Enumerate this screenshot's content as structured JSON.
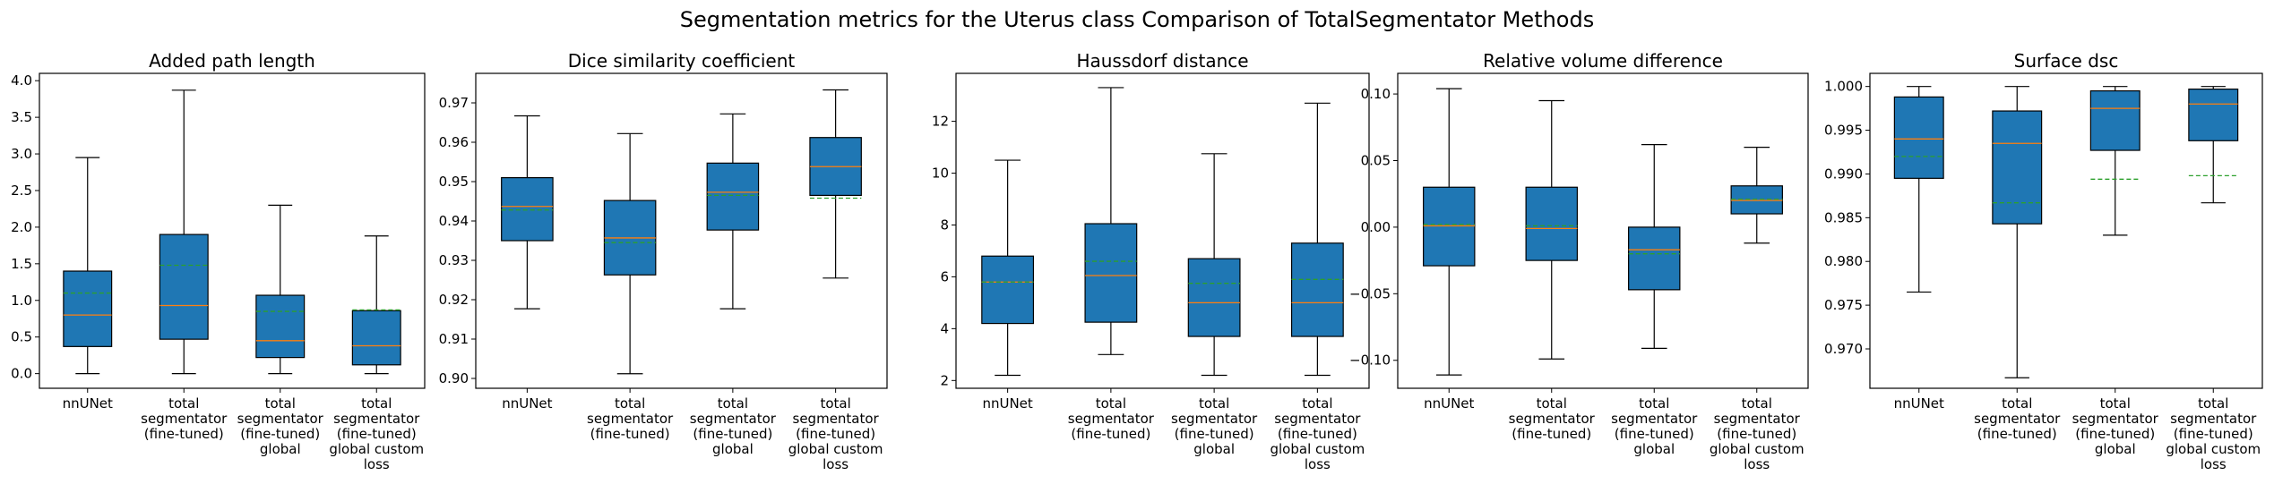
{
  "suptitle": "Segmentation metrics for the Uterus class Comparison of TotalSegmentator Methods",
  "colors": {
    "box_fill": "#1f77b4",
    "median": "#ff7f0e",
    "mean": "#2ca02c",
    "line": "#000000"
  },
  "categories": [
    [
      "nnUNet"
    ],
    [
      "total",
      "segmentator",
      "(fine-tuned)"
    ],
    [
      "total",
      "segmentator",
      "(fine-tuned)",
      "global"
    ],
    [
      "total",
      "segmentator",
      "(fine-tuned)",
      "global custom",
      "loss"
    ]
  ],
  "chart_data": [
    {
      "type": "box",
      "title": "Added path length",
      "ylim": [
        -0.2,
        4.1
      ],
      "yticks": [
        0.0,
        0.5,
        1.0,
        1.5,
        2.0,
        2.5,
        3.0,
        3.5,
        4.0
      ],
      "tick_labels": [
        "0.0",
        "0.5",
        "1.0",
        "1.5",
        "2.0",
        "2.5",
        "3.0",
        "3.5",
        "4.0"
      ],
      "boxes": [
        {
          "whislo": 0.0,
          "q1": 0.37,
          "med": 0.8,
          "mean": 1.1,
          "q3": 1.4,
          "whishi": 2.95
        },
        {
          "whislo": 0.0,
          "q1": 0.47,
          "med": 0.93,
          "mean": 1.48,
          "q3": 1.9,
          "whishi": 3.87
        },
        {
          "whislo": 0.0,
          "q1": 0.22,
          "med": 0.45,
          "mean": 0.85,
          "q3": 1.07,
          "whishi": 2.3
        },
        {
          "whislo": 0.0,
          "q1": 0.12,
          "med": 0.38,
          "mean": 0.87,
          "q3": 0.86,
          "whishi": 1.88
        }
      ]
    },
    {
      "type": "box",
      "title": "Dice similarity coefficient",
      "ylim": [
        0.8975,
        0.9775
      ],
      "yticks": [
        0.9,
        0.91,
        0.92,
        0.93,
        0.94,
        0.95,
        0.96,
        0.97
      ],
      "tick_labels": [
        "0.90",
        "0.91",
        "0.92",
        "0.93",
        "0.94",
        "0.95",
        "0.96",
        "0.97"
      ],
      "boxes": [
        {
          "whislo": 0.9177,
          "q1": 0.935,
          "med": 0.9437,
          "mean": 0.9428,
          "q3": 0.951,
          "whishi": 0.9667
        },
        {
          "whislo": 0.9012,
          "q1": 0.9263,
          "med": 0.9357,
          "mean": 0.9345,
          "q3": 0.9452,
          "whishi": 0.9622
        },
        {
          "whislo": 0.9177,
          "q1": 0.9377,
          "med": 0.9473,
          "mean": 0.9465,
          "q3": 0.9547,
          "whishi": 0.9672
        },
        {
          "whislo": 0.9255,
          "q1": 0.9465,
          "med": 0.9538,
          "mean": 0.9458,
          "q3": 0.9612,
          "whishi": 0.9733
        }
      ]
    },
    {
      "type": "box",
      "title": "Haussdorf distance",
      "ylim": [
        1.7,
        13.85
      ],
      "yticks": [
        2,
        4,
        6,
        8,
        10,
        12
      ],
      "tick_labels": [
        "2",
        "4",
        "6",
        "8",
        "10",
        "12"
      ],
      "boxes": [
        {
          "whislo": 2.2,
          "q1": 4.2,
          "med": 5.8,
          "mean": 5.8,
          "q3": 6.8,
          "whishi": 10.5
        },
        {
          "whislo": 3.0,
          "q1": 4.25,
          "med": 6.05,
          "mean": 6.6,
          "q3": 8.05,
          "whishi": 13.3
        },
        {
          "whislo": 2.2,
          "q1": 3.7,
          "med": 5.0,
          "mean": 5.75,
          "q3": 6.7,
          "whishi": 10.75
        },
        {
          "whislo": 2.2,
          "q1": 3.7,
          "med": 5.0,
          "mean": 5.9,
          "q3": 7.3,
          "whishi": 12.7
        }
      ]
    },
    {
      "type": "box",
      "title": "Relative volume difference",
      "ylim": [
        -0.121,
        0.1155
      ],
      "yticks": [
        -0.1,
        -0.05,
        0.0,
        0.05,
        0.1
      ],
      "tick_labels": [
        "−0.10",
        "−0.05",
        "0.00",
        "0.05",
        "0.10"
      ],
      "boxes": [
        {
          "whislo": -0.111,
          "q1": -0.029,
          "med": 0.001,
          "mean": 0.002,
          "q3": 0.03,
          "whishi": 0.104
        },
        {
          "whislo": -0.099,
          "q1": -0.025,
          "med": -0.001,
          "mean": 0.001,
          "q3": 0.03,
          "whishi": 0.095
        },
        {
          "whislo": -0.091,
          "q1": -0.047,
          "med": -0.017,
          "mean": -0.02,
          "q3": 0.0,
          "whishi": 0.062
        },
        {
          "whislo": -0.012,
          "q1": 0.01,
          "med": 0.02,
          "mean": 0.021,
          "q3": 0.031,
          "whishi": 0.06
        }
      ]
    },
    {
      "type": "box",
      "title": "Surface dsc",
      "ylim": [
        0.9655,
        1.0015
      ],
      "yticks": [
        0.97,
        0.975,
        0.98,
        0.985,
        0.99,
        0.995,
        1.0
      ],
      "tick_labels": [
        "0.970",
        "0.975",
        "0.980",
        "0.985",
        "0.990",
        "0.995",
        "1.000"
      ],
      "boxes": [
        {
          "whislo": 0.9765,
          "q1": 0.9895,
          "med": 0.994,
          "mean": 0.992,
          "q3": 0.9988,
          "whishi": 1.0
        },
        {
          "whislo": 0.9667,
          "q1": 0.9843,
          "med": 0.9935,
          "mean": 0.9867,
          "q3": 0.9972,
          "whishi": 1.0
        },
        {
          "whislo": 0.983,
          "q1": 0.9927,
          "med": 0.9975,
          "mean": 0.9894,
          "q3": 0.9995,
          "whishi": 1.0
        },
        {
          "whislo": 0.9867,
          "q1": 0.9938,
          "med": 0.998,
          "mean": 0.9898,
          "q3": 0.9997,
          "whishi": 1.0
        }
      ]
    }
  ]
}
